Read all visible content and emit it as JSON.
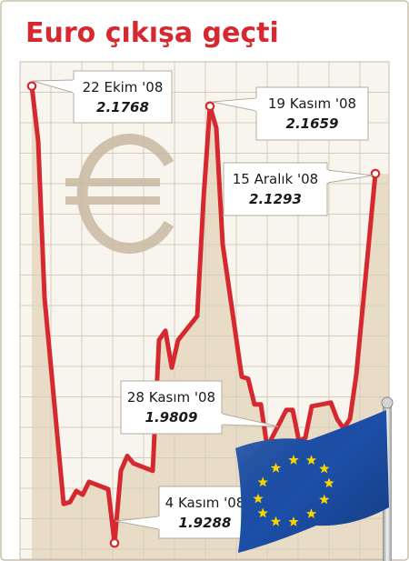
{
  "chart_data": {
    "type": "line",
    "title": "Euro çıkışa geçti",
    "x": [
      "2008-10-22",
      "2008-10-23",
      "2008-10-24",
      "2008-10-27",
      "2008-10-28",
      "2008-10-29",
      "2008-10-30",
      "2008-10-31",
      "2008-11-03",
      "2008-11-04",
      "2008-11-05",
      "2008-11-06",
      "2008-11-07",
      "2008-11-10",
      "2008-11-11",
      "2008-11-12",
      "2008-11-13",
      "2008-11-14",
      "2008-11-17",
      "2008-11-18",
      "2008-11-19",
      "2008-11-20",
      "2008-11-21",
      "2008-11-24",
      "2008-11-25",
      "2008-11-26",
      "2008-11-27",
      "2008-11-28",
      "2008-12-01",
      "2008-12-02",
      "2008-12-03",
      "2008-12-04",
      "2008-12-05",
      "2008-12-08",
      "2008-12-09",
      "2008-12-10",
      "2008-12-11",
      "2008-12-12",
      "2008-12-15"
    ],
    "series": [
      {
        "values": [
          2.1768,
          2.147,
          2.062,
          1.95,
          1.951,
          1.957,
          1.955,
          1.962,
          1.958,
          1.9288,
          1.968,
          1.976,
          1.972,
          1.968,
          2.039,
          2.044,
          2.024,
          2.039,
          2.052,
          2.116,
          2.1659,
          2.154,
          2.091,
          2.019,
          2.018,
          2.004,
          2.004,
          1.9809,
          2.001,
          2.001,
          1.984,
          1.986,
          2.003,
          2.005,
          1.996,
          1.991,
          1.996,
          2.02,
          2.1293
        ]
      }
    ],
    "ylim": [
      1.92,
      2.19
    ],
    "grid": true,
    "annotations": [
      {
        "date": "22 Ekim '08",
        "value": "2.1768",
        "x": "2008-10-22",
        "y": 2.1768
      },
      {
        "date": "19 Kasım '08",
        "value": "2.1659",
        "x": "2008-11-19",
        "y": 2.1659
      },
      {
        "date": "15 Aralık '08",
        "value": "2.1293",
        "x": "2008-12-15",
        "y": 2.1293
      },
      {
        "date": "28 Kasım '08",
        "value": "1.9809",
        "x": "2008-11-28",
        "y": 1.9809
      },
      {
        "date": "4 Kasım '08",
        "value": "1.9288",
        "x": "2008-11-04",
        "y": 1.9288
      }
    ]
  },
  "colors": {
    "title": "#d6282f",
    "line": "#d6282f",
    "area": "#e9dcc6",
    "grid": "#d6cdbd",
    "frame": "#c9bfae",
    "euro_symbol": "#c9b8a0",
    "flag_blue": "#1c4fa8",
    "flag_star": "#f5d400"
  },
  "decorations": {
    "background_symbol": "euro-symbol",
    "flag": "eu-flag"
  }
}
